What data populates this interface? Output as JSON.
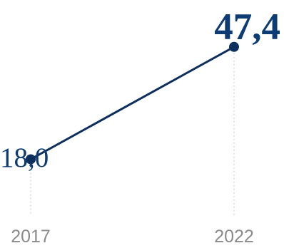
{
  "chart_data": {
    "type": "line",
    "x": [
      "2017",
      "2022"
    ],
    "values": [
      18.0,
      47.4
    ],
    "value_labels": [
      "18,0",
      "47,4"
    ],
    "ylim": [
      0,
      55
    ],
    "grid": false,
    "colors": {
      "line": "#0d2f5e",
      "point": "#0d2f5e",
      "label": "#0d3b73",
      "tick": "#8a8a8a",
      "guide": "#cfcfcf"
    }
  }
}
